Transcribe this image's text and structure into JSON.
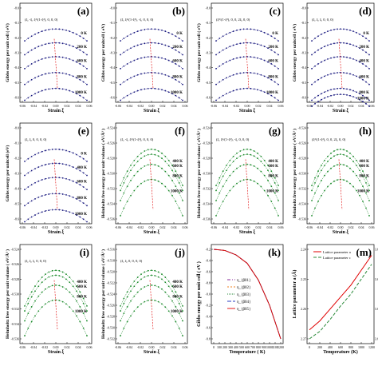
{
  "figure": {
    "panels": [
      {
        "id": "a",
        "label": "(a)",
        "legend": "(ξ, -ξ, ξ²/(1-ξ²), 0, 0, 0)",
        "temps": [
          "0 K",
          "200 K",
          "600 K",
          "800 K",
          "1000 K"
        ],
        "xlabel": "Strain ξ",
        "ylabel": "Gibbs energy per unit cell ( eV)",
        "yticks": [
          "-8.0",
          "-8.1",
          "-8.2",
          "-8.3",
          "-8.4",
          "-8.5",
          "-8.6"
        ],
        "xticks": [
          "-0.06",
          "-0.04",
          "-0.02",
          "0.00",
          "0.02",
          "0.04",
          "0.06"
        ]
      },
      {
        "id": "b",
        "label": "(b)",
        "legend": "(ξ, ξ²/(1-ξ²), -ξ, 0, 0, 0)",
        "temps": [
          "0 K",
          "200 K",
          "600 K",
          "800 K",
          "1000 K"
        ],
        "xlabel": "Strain ξ",
        "ylabel": "Gibbs energy per unitcell ( eV)",
        "yticks": [
          "-8.0",
          "-8.1",
          "-8.2",
          "-8.3",
          "-8.4",
          "-8.5",
          "-8.6"
        ],
        "xticks": [
          "-0.06",
          "-0.04",
          "-0.02",
          "0.00",
          "0.02",
          "0.04",
          "0.06"
        ]
      },
      {
        "id": "c",
        "label": "(c)",
        "legend": "(ξ²/(1-ξ²), 0, 0, 2ξ, 0, 0)",
        "temps": [
          "0 K",
          "200 K",
          "600 K",
          "800 K",
          "1000 K"
        ],
        "xlabel": "Strain ξ",
        "ylabel": "Gibbs energy per unit cell ( eV)",
        "yticks": [
          "-8.0",
          "-8.1",
          "-8.2",
          "-8.3",
          "-8.4",
          "-8.5",
          "-8.6"
        ],
        "xticks": [
          "-0.06",
          "-0.04",
          "-0.02",
          "0.00",
          "0.02",
          "0.04",
          "0.06"
        ]
      },
      {
        "id": "d",
        "label": "(d)",
        "legend": "(ξ, ξ, ξ, 0, 0, 0)",
        "temps": [
          "0 K",
          "200 K",
          "400 K",
          "600 K",
          "800 K",
          "1000 K"
        ],
        "xlabel": "Strain ξ",
        "ylabel": "Gibbs energy per unitcell ( eV)",
        "yticks": [
          "-8.0",
          "-8.1",
          "-8.2",
          "-8.3",
          "-8.4",
          "-8.5",
          "-8.6"
        ],
        "xticks": [
          "-0.06",
          "-0.04",
          "-0.02",
          "0.00",
          "0.02",
          "0.04",
          "0.06"
        ]
      },
      {
        "id": "e",
        "label": "(e)",
        "legend": "(ξ, ξ, 0, 0, 0, 0)",
        "temps": [
          "0 K",
          "400 K",
          "600 K",
          "800 K",
          "1000 K"
        ],
        "xlabel": "Strain ξ",
        "ylabel": "Gibbs energy per unitcell (eV)",
        "yticks": [
          "-8.0",
          "-8.1",
          "-8.2",
          "-8.3",
          "-8.4",
          "-8.5",
          "-8.6"
        ],
        "xticks": [
          "-0.06",
          "-0.04",
          "-0.02",
          "0.00",
          "0.02",
          "0.04",
          "0.06"
        ]
      },
      {
        "id": "f",
        "label": "(f)",
        "legend": "(ξ, -ξ, ξ²/(1-ξ²), 0, 0, 0)",
        "temps": [
          "400 K",
          "600 K",
          "800 K",
          "1000 K"
        ],
        "xlabel": "Strain ξ",
        "ylabel": "Helmholtz free energy per unit volume ( eV/Å³ )",
        "yticks": [
          "-0.524",
          "-0.526",
          "-0.528",
          "-0.530",
          "-0.532",
          "-0.534",
          "-0.536"
        ],
        "xticks": [
          "-0.06",
          "-0.04",
          "-0.02",
          "0.00",
          "0.02",
          "0.04",
          "0.06"
        ]
      },
      {
        "id": "g",
        "label": "(g)",
        "legend": "(ξ, ξ²/(1-ξ²), -ξ, 0, 0, 0)",
        "temps": [
          "400 K",
          "600 K",
          "800 K",
          "1000 K"
        ],
        "xlabel": "Strain ξ",
        "ylabel": "Helmholtz free energy per unit volume ( eV/Å³ )",
        "yticks": [
          "-0.524",
          "-0.526",
          "-0.528",
          "-0.530",
          "-0.532",
          "-0.534",
          "-0.536"
        ],
        "xticks": [
          "-0.06",
          "-0.04",
          "-0.02",
          "0.00",
          "0.02",
          "0.04",
          "0.06"
        ]
      },
      {
        "id": "h",
        "label": "(h)",
        "legend": "(ξ²/(1-ξ²), 0, 0, 2ξ, 0, 0)",
        "temps": [
          "400 K",
          "600 K",
          "800 K",
          "1000 K"
        ],
        "xlabel": "Strain ξ",
        "ylabel": "Helmholtz free energy per unit volume ( eV/Å³ )",
        "yticks": [
          "-0.524",
          "-0.526",
          "-0.528",
          "-0.530",
          "-0.532",
          "-0.534",
          "-0.536"
        ],
        "xticks": [
          "-0.06",
          "-0.04",
          "-0.02",
          "0.00",
          "0.02",
          "0.04",
          "0.06"
        ]
      },
      {
        "id": "i",
        "label": "(i)",
        "legend": "(ξ, ξ, ξ, 0, 0, 0)",
        "temps": [
          "400 K",
          "600 K",
          "800 K",
          "1000 K"
        ],
        "xlabel": "Strain ξ",
        "ylabel": "Helmholtz free energy per unit volume ( eV/Å³ )",
        "yticks": [
          "-0.524",
          "-0.526",
          "-0.528",
          "-0.530",
          "-0.532",
          "-0.534",
          "-0.536"
        ],
        "xticks": [
          "-0.06",
          "-0.04",
          "-0.02",
          "0.00",
          "0.02",
          "0.04",
          "0.06"
        ]
      },
      {
        "id": "j",
        "label": "(j)",
        "legend": "(ξ, ξ, 0, 0, 0, 0)",
        "temps": [
          "400 K",
          "600 K",
          "800 K",
          "1000 K"
        ],
        "xlabel": "Strain ξ",
        "ylabel": "Helmholtz free energy per unit volume ( eV/Å³ )",
        "yticks": [
          "-0.516",
          "-0.518",
          "-0.520",
          "-0.522",
          "-0.524",
          "-0.526",
          "-0.528",
          "-0.530",
          "-0.532"
        ],
        "xticks": [
          "-0.06",
          "-0.04",
          "-0.02",
          "0.00",
          "0.02",
          "0.04",
          "0.06"
        ]
      },
      {
        "id": "k",
        "label": "(k)",
        "xlabel": "Temperature ( K)",
        "ylabel": "Gibbs energy per unit cell ( eV )",
        "yticks": [
          "-8.2",
          "-8.4",
          "-8.6",
          "-8.8",
          "-9.0",
          "-9.2",
          "-9.4",
          "-9.6",
          "-9.8"
        ],
        "xticks": [
          "0",
          "100",
          "200",
          "300",
          "400",
          "500",
          "600",
          "700",
          "800",
          "900",
          "1000",
          "1100",
          "1200"
        ]
      },
      {
        "id": "m",
        "label": "(m)",
        "xlabel": "Temperature (K)",
        "ylabel_left": "Lattice parameter a (Å)",
        "ylabel_right": "Lattice parameter c (Å)",
        "yticks_left": [
          "2.24",
          "2.25",
          "2.26",
          "2.27"
        ],
        "yticks_right": [
          "3.60",
          "3.62",
          "3.64",
          "3.66"
        ],
        "xticks": [
          "0",
          "200",
          "400",
          "600",
          "800",
          "1000",
          "1200"
        ]
      }
    ]
  },
  "chart_data": [
    {
      "panel": "a",
      "type": "scatter",
      "series": [
        {
          "name": "0 K",
          "x": [
            -0.05,
            -0.04,
            -0.03,
            -0.02,
            -0.01,
            0.0,
            0.01,
            0.02,
            0.03,
            0.04,
            0.05
          ],
          "y": [
            -8.24,
            -8.27,
            -8.29,
            -8.3,
            -8.31,
            -8.31,
            -8.31,
            -8.3,
            -8.29,
            -8.27,
            -8.24
          ]
        },
        {
          "name": "1000 K",
          "x": [
            -0.05,
            -0.04,
            -0.03,
            -0.02,
            -0.01,
            0.0,
            0.01,
            0.02,
            0.03,
            0.04,
            0.05
          ],
          "y": [
            -8.46,
            -8.49,
            -8.52,
            -8.54,
            -8.55,
            -8.55,
            -8.55,
            -8.54,
            -8.52,
            -8.49,
            -8.46
          ]
        }
      ]
    },
    {
      "panel": "k",
      "type": "line",
      "series": [
        {
          "name": "η_{β01}",
          "x": [
            0,
            200,
            400,
            600,
            800,
            1000,
            1200
          ],
          "y": [
            -8.2,
            -8.22,
            -8.3,
            -8.45,
            -8.75,
            -9.2,
            -9.8
          ]
        },
        {
          "name": "η_{β02}",
          "x": [
            0,
            200,
            400,
            600,
            800,
            1000,
            1200
          ],
          "y": [
            -8.2,
            -8.22,
            -8.3,
            -8.45,
            -8.75,
            -9.2,
            -9.8
          ]
        },
        {
          "name": "η_{β03}",
          "x": [
            0,
            200,
            400,
            600,
            800,
            1000,
            1200
          ],
          "y": [
            -8.2,
            -8.22,
            -8.3,
            -8.45,
            -8.75,
            -9.2,
            -9.8
          ]
        },
        {
          "name": "η_{β04}",
          "x": [
            0,
            200,
            400,
            600,
            800,
            1000,
            1200
          ],
          "y": [
            -8.2,
            -8.22,
            -8.3,
            -8.45,
            -8.75,
            -9.2,
            -9.8
          ]
        },
        {
          "name": "η_{β05}",
          "x": [
            0,
            200,
            400,
            600,
            800,
            1000,
            1200
          ],
          "y": [
            -8.2,
            -8.22,
            -8.3,
            -8.45,
            -8.75,
            -9.2,
            -9.8
          ]
        }
      ]
    },
    {
      "panel": "m",
      "type": "line",
      "series": [
        {
          "name": "Lattice parameter a",
          "x": [
            0,
            200,
            400,
            600,
            800,
            1000,
            1200
          ],
          "y": [
            2.243,
            2.246,
            2.25,
            2.254,
            2.258,
            2.263,
            2.268
          ]
        },
        {
          "name": "Lattice parameter c",
          "x": [
            0,
            200,
            400,
            600,
            800,
            1000,
            1200
          ],
          "y": [
            3.6,
            3.605,
            3.613,
            3.622,
            3.63,
            3.64,
            3.65
          ]
        }
      ]
    }
  ],
  "colors": {
    "navy": "#1a1a80",
    "green": "#1a8a2a",
    "red": "#e00000",
    "blue": "#2a3ec0",
    "purple": "#8a2a9a",
    "orange": "#f08020",
    "darkgreen": "#2a8a3a"
  }
}
